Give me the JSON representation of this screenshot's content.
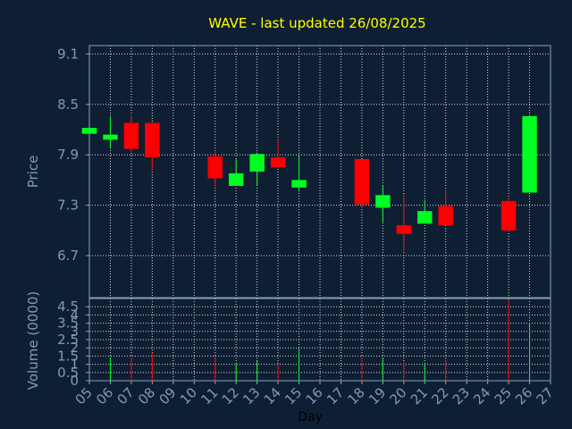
{
  "chart_data": [
    {
      "type": "candlestick",
      "title": "WAVE - last updated 26/08/2025",
      "xlabel": "",
      "ylabel": "Price",
      "ylim": [
        6.2,
        9.2
      ],
      "yticks": [
        9.1,
        8.5,
        7.9,
        7.3,
        6.7
      ],
      "grid": true,
      "candles": [
        {
          "day": "05",
          "open": 8.15,
          "close": 8.22,
          "high": 8.22,
          "low": 8.15
        },
        {
          "day": "06",
          "open": 8.08,
          "close": 8.14,
          "high": 8.35,
          "low": 7.98
        },
        {
          "day": "07",
          "open": 8.28,
          "close": 7.97,
          "high": 8.37,
          "low": 7.95
        },
        {
          "day": "08",
          "open": 8.28,
          "close": 7.87,
          "high": 8.28,
          "low": 7.72
        },
        {
          "day": "11",
          "open": 7.88,
          "close": 7.62,
          "high": 7.93,
          "low": 7.52
        },
        {
          "day": "12",
          "open": 7.53,
          "close": 7.68,
          "high": 7.86,
          "low": 7.53
        },
        {
          "day": "13",
          "open": 7.7,
          "close": 7.91,
          "high": 7.91,
          "low": 7.54
        },
        {
          "day": "14",
          "open": 7.87,
          "close": 7.75,
          "high": 8.08,
          "low": 7.75
        },
        {
          "day": "15",
          "open": 7.51,
          "close": 7.6,
          "high": 7.88,
          "low": 7.46
        },
        {
          "day": "18",
          "open": 7.85,
          "close": 7.31,
          "high": 7.85,
          "low": 7.28
        },
        {
          "day": "19",
          "open": 7.27,
          "close": 7.42,
          "high": 7.54,
          "low": 7.1
        },
        {
          "day": "20",
          "open": 7.06,
          "close": 6.96,
          "high": 7.43,
          "low": 6.75
        },
        {
          "day": "21",
          "open": 7.08,
          "close": 7.23,
          "high": 7.36,
          "low": 7.08
        },
        {
          "day": "22",
          "open": 7.29,
          "close": 7.06,
          "high": 7.48,
          "low": 7.06
        },
        {
          "day": "25",
          "open": 7.35,
          "close": 7.0,
          "high": 7.38,
          "low": 6.99
        },
        {
          "day": "26",
          "open": 7.45,
          "close": 8.36,
          "high": 8.36,
          "low": 7.45
        }
      ]
    },
    {
      "type": "bar",
      "xlabel": "Day",
      "ylabel": "Volume (0000)",
      "ylim": [
        0,
        5
      ],
      "yticks": [
        "4.5",
        "4",
        "3.5",
        "3",
        "2.5",
        "2",
        "1.5",
        "1",
        "0.5",
        "0"
      ],
      "ytick_values": [
        4.5,
        4,
        3.5,
        3,
        2.5,
        2,
        1.5,
        1,
        0.5,
        0
      ],
      "categories": [
        "05",
        "06",
        "07",
        "08",
        "09",
        "10",
        "11",
        "12",
        "13",
        "14",
        "15",
        "16",
        "17",
        "18",
        "19",
        "20",
        "21",
        "22",
        "23",
        "24",
        "25",
        "26",
        "27"
      ],
      "volumes": [
        {
          "day": "06",
          "value": 1.45,
          "dir": "up"
        },
        {
          "day": "07",
          "value": 1.4,
          "dir": "down"
        },
        {
          "day": "08",
          "value": 1.7,
          "dir": "down"
        },
        {
          "day": "11",
          "value": 1.45,
          "dir": "down"
        },
        {
          "day": "12",
          "value": 1.0,
          "dir": "up"
        },
        {
          "day": "13",
          "value": 1.2,
          "dir": "up"
        },
        {
          "day": "14",
          "value": 1.0,
          "dir": "down"
        },
        {
          "day": "15",
          "value": 1.95,
          "dir": "up"
        },
        {
          "day": "18",
          "value": 1.45,
          "dir": "down"
        },
        {
          "day": "19",
          "value": 1.35,
          "dir": "up"
        },
        {
          "day": "20",
          "value": 1.15,
          "dir": "down"
        },
        {
          "day": "21",
          "value": 1.0,
          "dir": "up"
        },
        {
          "day": "22",
          "value": 1.25,
          "dir": "down"
        },
        {
          "day": "25",
          "value": 4.95,
          "dir": "down"
        },
        {
          "day": "26",
          "value": 3.5,
          "dir": "up"
        }
      ]
    }
  ],
  "colors": {
    "background": "#0f1f33",
    "plot_border": "#8aa0b8",
    "grid": "#d8dde3",
    "title": "#ffff00",
    "axis_text": "#7f9bb5",
    "up": "#00ff22",
    "down": "#ff0000"
  }
}
